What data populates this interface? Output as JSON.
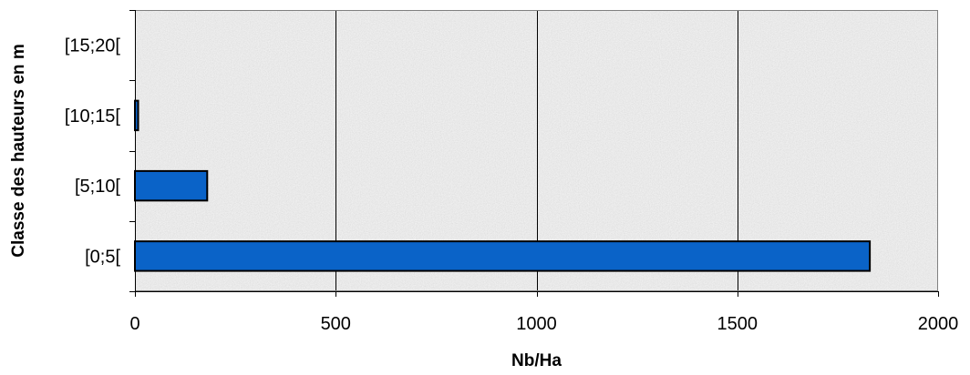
{
  "chart_data": {
    "type": "bar",
    "orientation": "horizontal",
    "title": "",
    "xlabel": "Nb/Ha",
    "ylabel": "Classe des hauteurs en m",
    "categories": [
      "[0;5[",
      "[5;10[",
      "[10;15[",
      "[15;20["
    ],
    "values": [
      1830,
      180,
      8,
      0
    ],
    "xlim": [
      0,
      2000
    ],
    "xticks": [
      0,
      500,
      1000,
      1500,
      2000
    ],
    "xtick_labels": [
      "0",
      "500",
      "1000",
      "1500",
      "2000"
    ],
    "grid": "vertical",
    "legend": "none",
    "colors": {
      "bar_fill": "#0a63c8",
      "bar_stroke": "#000000",
      "plot_background": "#e4e4e4",
      "grid": "#000000",
      "frame": "#808080"
    }
  }
}
